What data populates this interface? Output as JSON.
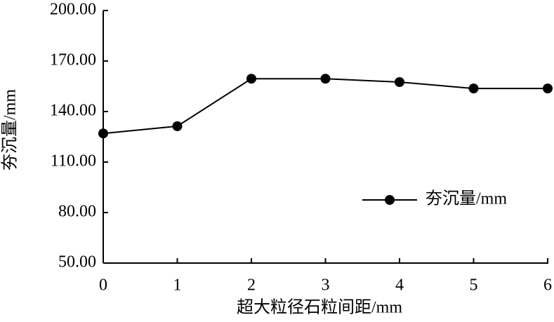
{
  "chart_data": {
    "type": "line",
    "xlabel": "超大粒径石粒间距/mm",
    "ylabel": "夯沉量/mm",
    "x": [
      0,
      1,
      2,
      3,
      4,
      5,
      6
    ],
    "series": [
      {
        "name": "夯沉量/mm",
        "color": "#000000",
        "values": [
          127,
          131.3,
          159.5,
          159.5,
          157.5,
          153.7,
          153.7
        ]
      }
    ],
    "xlim": [
      0,
      6
    ],
    "xticks": [
      0,
      1,
      2,
      3,
      4,
      5,
      6
    ],
    "ylim": [
      50,
      200
    ],
    "yticks": [
      {
        "value": 50,
        "label": "50.00"
      },
      {
        "value": 80,
        "label": "80.00"
      },
      {
        "value": 110,
        "label": "110.00"
      },
      {
        "value": 140,
        "label": "140.00"
      },
      {
        "value": 170,
        "label": "170.00"
      },
      {
        "value": 200,
        "label": "200.00"
      }
    ],
    "legend": "right"
  }
}
